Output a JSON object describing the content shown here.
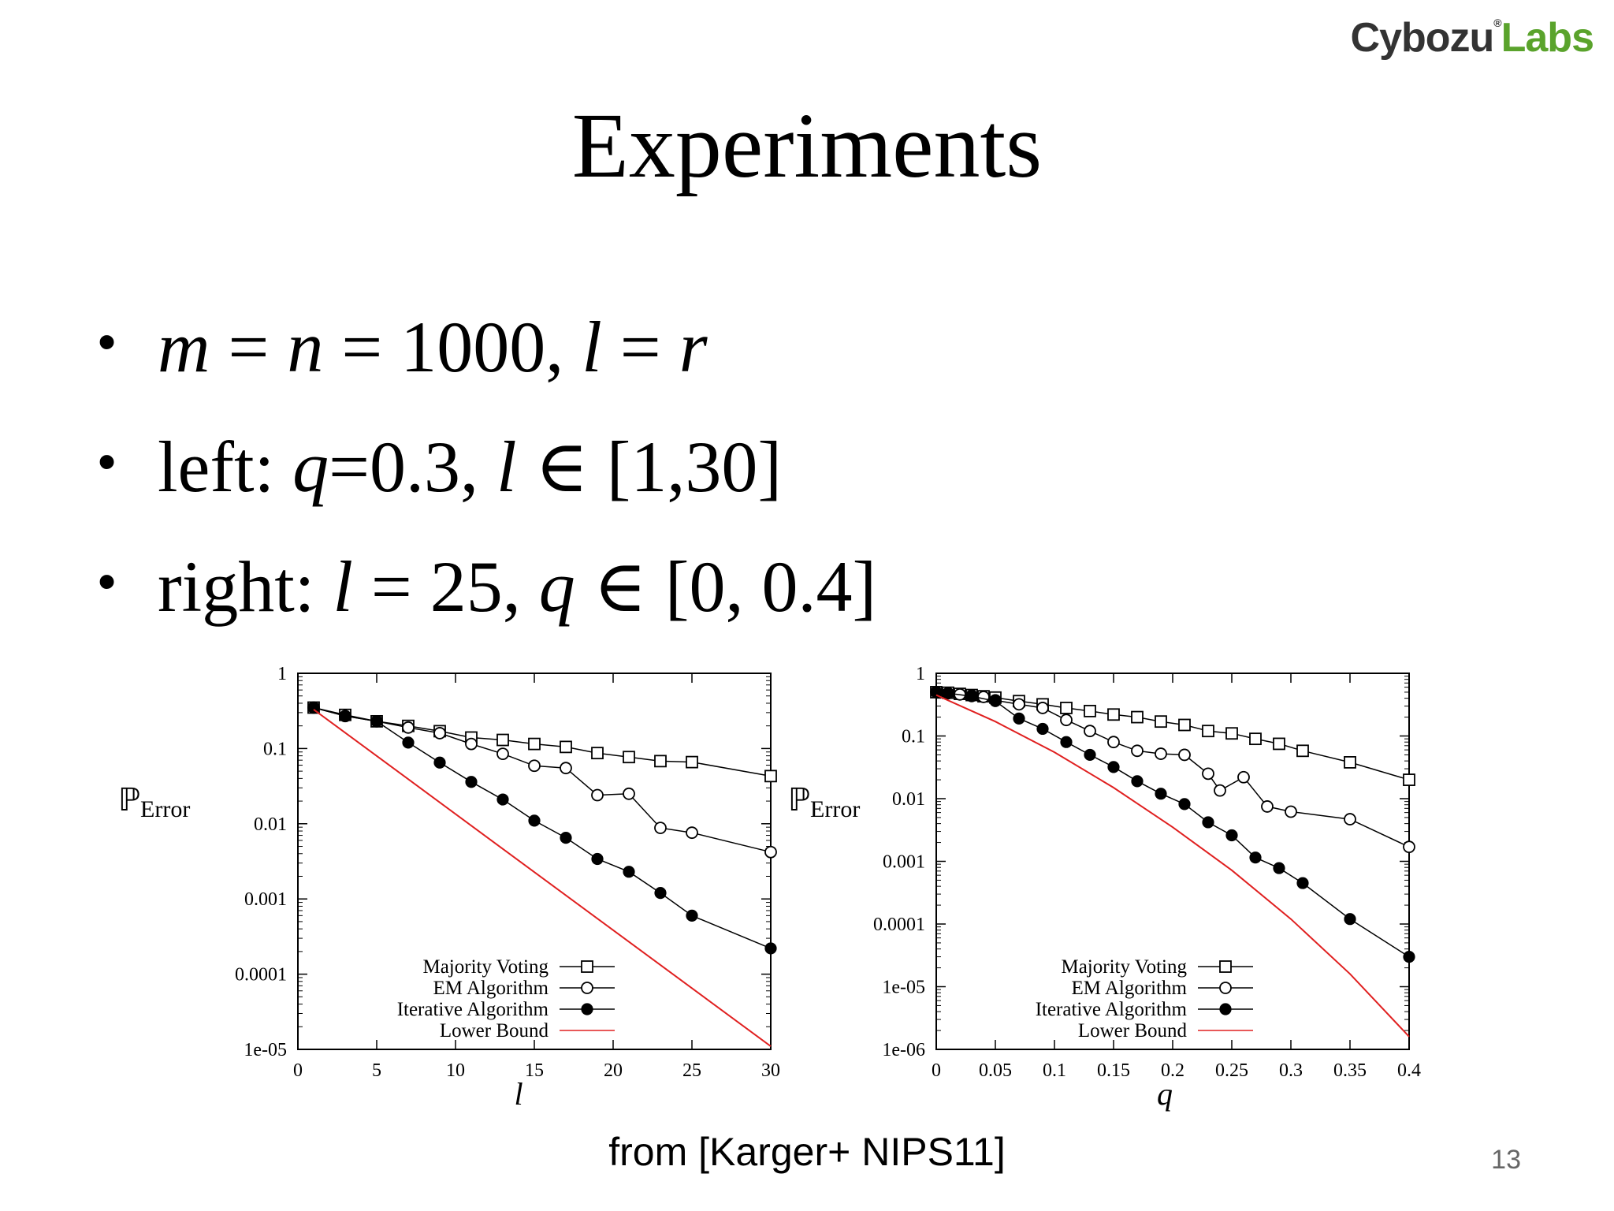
{
  "logo": {
    "part1": "Cybozu",
    "registered": "®",
    "part2": "Labs"
  },
  "title": "Experiments",
  "bullets": [
    {
      "symbol": "•",
      "parts": [
        {
          "text": "m",
          "italic": true
        },
        {
          "text": " = ",
          "italic": false
        },
        {
          "text": "n",
          "italic": true
        },
        {
          "text": " = 1000, ",
          "italic": false
        },
        {
          "text": "l",
          "italic": true
        },
        {
          "text": " = ",
          "italic": false
        },
        {
          "text": "r",
          "italic": true
        }
      ]
    },
    {
      "symbol": "•",
      "parts": [
        {
          "text": "left: ",
          "italic": false
        },
        {
          "text": "q",
          "italic": true
        },
        {
          "text": "=0.3, ",
          "italic": false
        },
        {
          "text": "l",
          "italic": true
        },
        {
          "text": " ∈ [1,30]",
          "italic": false
        }
      ]
    },
    {
      "symbol": "•",
      "parts": [
        {
          "text": "right: ",
          "italic": false
        },
        {
          "text": "l",
          "italic": true
        },
        {
          "text": " = 25, ",
          "italic": false
        },
        {
          "text": "q",
          "italic": true
        },
        {
          "text": " ∈ [0, 0.4]",
          "italic": false
        }
      ]
    }
  ],
  "source": "from [Karger+ NIPS11]",
  "page_number": "13",
  "chart_data": [
    {
      "type": "line",
      "xlabel": "l",
      "ylabel": "ℙ",
      "ylabel_sub": "Error",
      "yscale": "log",
      "xlim": [
        0,
        30
      ],
      "ylim": [
        1e-05,
        1
      ],
      "xticks": [
        0,
        5,
        10,
        15,
        20,
        25,
        30
      ],
      "xtick_labels": [
        "0",
        "5",
        "10",
        "15",
        "20",
        "25",
        "30"
      ],
      "yticks": [
        1,
        0.1,
        0.01,
        0.001,
        0.0001,
        1e-05
      ],
      "ytick_labels": [
        "1",
        "0.1",
        "0.01",
        "0.001",
        "0.0001",
        "1e-05"
      ],
      "legend_position": "bottom-right",
      "series": [
        {
          "name": "Majority Voting",
          "marker": "square-open",
          "color": "#000000",
          "x": [
            1,
            3,
            5,
            7,
            9,
            11,
            13,
            15,
            17,
            19,
            21,
            23,
            25,
            30
          ],
          "y": [
            0.35,
            0.28,
            0.23,
            0.2,
            0.17,
            0.14,
            0.13,
            0.115,
            0.105,
            0.087,
            0.077,
            0.068,
            0.066,
            0.043
          ]
        },
        {
          "name": "EM Algorithm",
          "marker": "circle-open",
          "color": "#000000",
          "x": [
            1,
            3,
            5,
            7,
            9,
            11,
            13,
            15,
            17,
            19,
            21,
            23,
            25,
            30
          ],
          "y": [
            0.35,
            0.27,
            0.23,
            0.19,
            0.16,
            0.115,
            0.085,
            0.059,
            0.055,
            0.024,
            0.025,
            0.0088,
            0.0076,
            0.0042
          ]
        },
        {
          "name": "Iterative Algorithm",
          "marker": "circle-filled",
          "color": "#000000",
          "x": [
            1,
            3,
            5,
            7,
            9,
            11,
            13,
            15,
            17,
            19,
            21,
            23,
            25,
            30
          ],
          "y": [
            0.35,
            0.27,
            0.23,
            0.12,
            0.065,
            0.036,
            0.021,
            0.011,
            0.0065,
            0.0034,
            0.0023,
            0.0012,
            0.0006,
            0.00022
          ]
        },
        {
          "name": "Lower Bound",
          "marker": "none",
          "color": "#e02020",
          "x": [
            1,
            30
          ],
          "y": [
            0.33,
            1.1e-05
          ]
        }
      ]
    },
    {
      "type": "line",
      "xlabel": "q",
      "ylabel": "ℙ",
      "ylabel_sub": "Error",
      "yscale": "log",
      "xlim": [
        0,
        0.4
      ],
      "ylim": [
        1e-06,
        1
      ],
      "xticks": [
        0,
        0.05,
        0.1,
        0.15,
        0.2,
        0.25,
        0.3,
        0.35,
        0.4
      ],
      "xtick_labels": [
        "0",
        "0.05",
        "0.1",
        "0.15",
        "0.2",
        "0.25",
        "0.3",
        "0.35",
        "0.4"
      ],
      "yticks": [
        1,
        0.1,
        0.01,
        0.001,
        0.0001,
        1e-05,
        1e-06
      ],
      "ytick_labels": [
        "1",
        "0.1",
        "0.01",
        "0.001",
        "0.0001",
        "1e-05",
        "1e-06"
      ],
      "legend_position": "bottom-right",
      "series": [
        {
          "name": "Majority Voting",
          "marker": "square-open",
          "color": "#000000",
          "x": [
            0,
            0.01,
            0.02,
            0.03,
            0.04,
            0.05,
            0.07,
            0.09,
            0.11,
            0.13,
            0.15,
            0.17,
            0.19,
            0.21,
            0.23,
            0.25,
            0.27,
            0.29,
            0.31,
            0.35,
            0.4
          ],
          "y": [
            0.5,
            0.49,
            0.47,
            0.45,
            0.43,
            0.41,
            0.36,
            0.32,
            0.28,
            0.25,
            0.22,
            0.2,
            0.17,
            0.15,
            0.12,
            0.11,
            0.09,
            0.075,
            0.058,
            0.038,
            0.02
          ]
        },
        {
          "name": "EM Algorithm",
          "marker": "circle-open",
          "color": "#000000",
          "x": [
            0,
            0.01,
            0.02,
            0.03,
            0.04,
            0.05,
            0.07,
            0.09,
            0.11,
            0.13,
            0.15,
            0.17,
            0.19,
            0.21,
            0.23,
            0.24,
            0.26,
            0.28,
            0.3,
            0.35,
            0.4
          ],
          "y": [
            0.5,
            0.48,
            0.46,
            0.44,
            0.42,
            0.37,
            0.32,
            0.28,
            0.18,
            0.12,
            0.08,
            0.058,
            0.052,
            0.05,
            0.025,
            0.0135,
            0.022,
            0.0075,
            0.0062,
            0.0047,
            0.0017
          ]
        },
        {
          "name": "Iterative Algorithm",
          "marker": "circle-filled",
          "color": "#000000",
          "x": [
            0,
            0.01,
            0.03,
            0.05,
            0.07,
            0.09,
            0.11,
            0.13,
            0.15,
            0.17,
            0.19,
            0.21,
            0.23,
            0.25,
            0.27,
            0.29,
            0.31,
            0.35,
            0.4
          ],
          "y": [
            0.5,
            0.48,
            0.43,
            0.36,
            0.19,
            0.13,
            0.08,
            0.05,
            0.032,
            0.019,
            0.012,
            0.0082,
            0.0042,
            0.0026,
            0.00115,
            0.00078,
            0.00045,
            0.00012,
            3e-05
          ]
        },
        {
          "name": "Lower Bound",
          "marker": "none",
          "color": "#e02020",
          "x": [
            0,
            0.05,
            0.1,
            0.15,
            0.2,
            0.25,
            0.3,
            0.35,
            0.4
          ],
          "y": [
            0.45,
            0.17,
            0.055,
            0.015,
            0.0035,
            0.00072,
            0.00012,
            1.6e-05,
            1.6e-06
          ]
        }
      ]
    }
  ]
}
